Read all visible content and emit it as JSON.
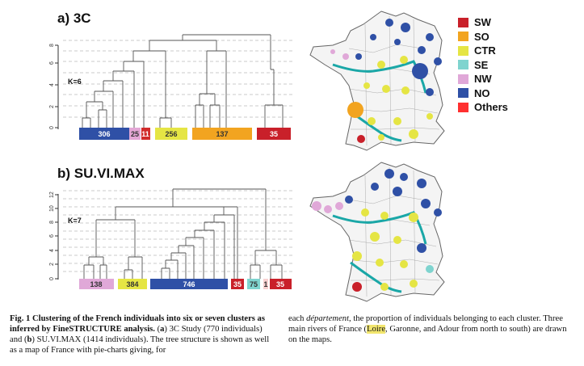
{
  "figure": {
    "panel_a": {
      "label": "a) 3C",
      "k_label": "K=6",
      "yticks": [
        "0",
        "2",
        "4",
        "6",
        "8"
      ],
      "clusters": [
        {
          "count": "306",
          "color": "#2f50a6"
        },
        {
          "count": "25",
          "color": "#e4a7d6"
        },
        {
          "count": "11",
          "color": "#d12b2b"
        },
        {
          "count": "256",
          "color": "#e5e544"
        },
        {
          "count": "137",
          "color": "#f2a420"
        },
        {
          "count": "35",
          "color": "#c9202a"
        }
      ]
    },
    "panel_b": {
      "label": "b) SU.VI.MAX",
      "k_label": "K=7",
      "yticks": [
        "0",
        "2",
        "4",
        "6",
        "8",
        "10",
        "12"
      ],
      "clusters": [
        {
          "count": "138",
          "color": "#e0a8d8"
        },
        {
          "count": "384",
          "color": "#e5e544"
        },
        {
          "count": "746",
          "color": "#2f50a6"
        },
        {
          "count": "35",
          "color": "#c9202a"
        },
        {
          "count": "75",
          "color": "#7fd4cf"
        },
        {
          "count": "1",
          "color": "#ff3030"
        },
        {
          "count": "35",
          "color": "#c9202a"
        }
      ]
    },
    "legend": [
      {
        "label": "SW",
        "color": "#c9202a"
      },
      {
        "label": "SO",
        "color": "#f2a420"
      },
      {
        "label": "CTR",
        "color": "#e5e544"
      },
      {
        "label": "SE",
        "color": "#7fd4cf"
      },
      {
        "label": "NW",
        "color": "#e0a8d8"
      },
      {
        "label": "NO",
        "color": "#2f50a6"
      },
      {
        "label": "Others",
        "color": "#ff3030"
      }
    ],
    "map_colors": {
      "river": "#1aa7a7",
      "border": "#666666"
    }
  },
  "caption": {
    "left": {
      "figure_no": "Fig. 1",
      "bold_text": "Clustering of the French individuals into six or seven clusters as inferred by FineSTRUCTURE analysis.",
      "a_label": "a",
      "a_text": "3C Study (770 individuals) and",
      "b_label": "b",
      "b_text": "SU.VI.MAX (1414 individuals). The tree structure is shown as well as a map of France with pie-charts giving, for"
    },
    "right": {
      "pre": "each",
      "italic": "département",
      "text1": ", the proportion of individuals belonging to each cluster. Three main rivers of France (",
      "river1": "Loire",
      "text2": ", Garonne, and Adour from north to south) are drawn on the maps."
    }
  }
}
